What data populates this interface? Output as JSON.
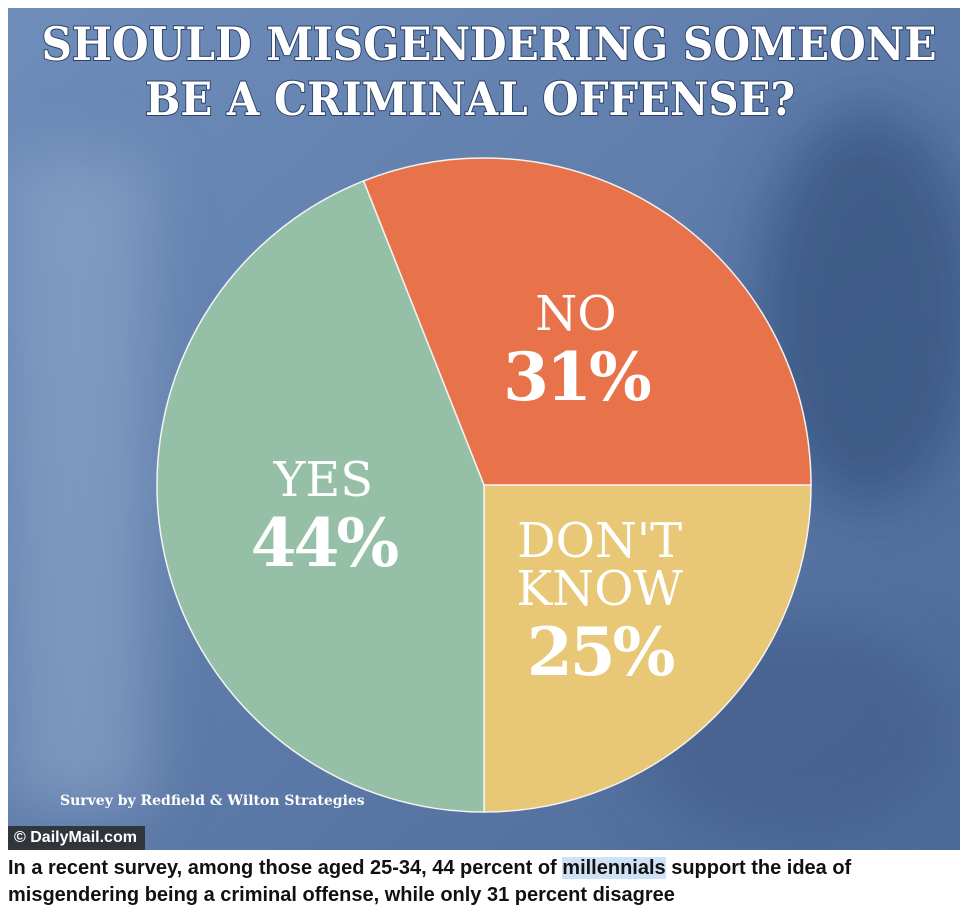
{
  "chart_data": {
    "type": "pie",
    "title": [
      "SHOULD MISGENDERING SOMEONE",
      "BE A CRIMINAL OFFENSE?"
    ],
    "categories": [
      "DON'T KNOW",
      "YES",
      "NO"
    ],
    "values": [
      25,
      44,
      31
    ],
    "value_labels": [
      "25%",
      "44%",
      "31%"
    ],
    "colors": [
      "#e8c877",
      "#95bfa7",
      "#e8734a"
    ],
    "source": "Survey by Redfield & Wilton Strategies",
    "credit": "© DailyMail.com"
  },
  "caption": {
    "before": "In a recent survey, among those aged 25-34, 44 percent of ",
    "highlight": "millennials",
    "after": " support the idea of misgendering being a criminal offense, while only 31 percent disagree"
  }
}
